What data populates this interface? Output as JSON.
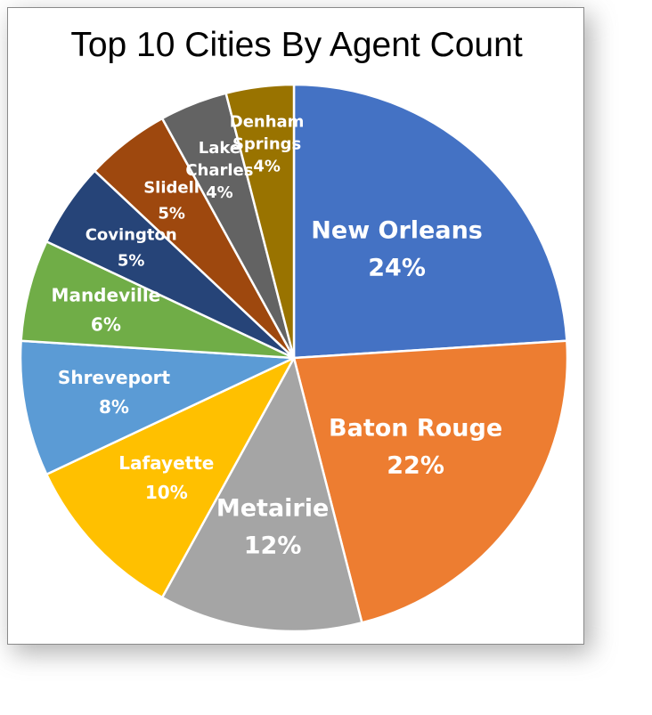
{
  "chart_data": {
    "type": "pie",
    "title": "Top 10 Cities By Agent Count",
    "slices": [
      {
        "label": "New Orleans",
        "label_lines": [
          "New Orleans"
        ],
        "value": 24,
        "percent_text": "24%",
        "color": "#4472C4"
      },
      {
        "label": "Baton Rouge",
        "label_lines": [
          "Baton Rouge"
        ],
        "value": 22,
        "percent_text": "22%",
        "color": "#ED7D31"
      },
      {
        "label": "Metairie",
        "label_lines": [
          "Metairie"
        ],
        "value": 12,
        "percent_text": "12%",
        "color": "#A5A5A5"
      },
      {
        "label": "Lafayette",
        "label_lines": [
          "Lafayette"
        ],
        "value": 10,
        "percent_text": "10%",
        "color": "#FFC000"
      },
      {
        "label": "Shreveport",
        "label_lines": [
          "Shreveport"
        ],
        "value": 8,
        "percent_text": "8%",
        "color": "#5B9BD5"
      },
      {
        "label": "Mandeville",
        "label_lines": [
          "Mandeville"
        ],
        "value": 6,
        "percent_text": "6%",
        "color": "#70AD47"
      },
      {
        "label": "Covington",
        "label_lines": [
          "Covington"
        ],
        "value": 5,
        "percent_text": "5%",
        "color": "#264478"
      },
      {
        "label": "Slidell",
        "label_lines": [
          "Slidell"
        ],
        "value": 5,
        "percent_text": "5%",
        "color": "#9E480E"
      },
      {
        "label": "Lake Charles",
        "label_lines": [
          "Lake",
          "Charles"
        ],
        "value": 4,
        "percent_text": "4%",
        "color": "#636363"
      },
      {
        "label": "Denham Springs",
        "label_lines": [
          "Denham",
          "Springs"
        ],
        "value": 4,
        "percent_text": "4%",
        "color": "#997300"
      }
    ],
    "start_angle_deg": 0,
    "direction": "clockwise",
    "legend": "none",
    "data_labels": "inside"
  }
}
